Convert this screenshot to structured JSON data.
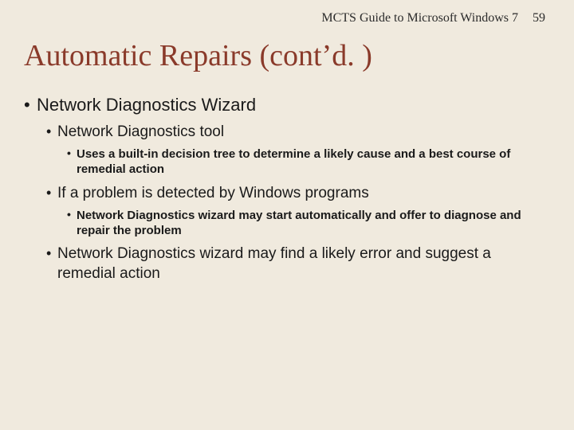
{
  "background_color": "#f0eade",
  "title_color": "#8a3a2a",
  "text_color": "#1a1a1a",
  "header": {
    "book_title": "MCTS Guide to Microsoft Windows 7",
    "page_number": "59"
  },
  "title": "Automatic Repairs (cont’d. )",
  "bullets": {
    "l1_item1": "Network Diagnostics Wizard",
    "l2_item1": "Network Diagnostics tool",
    "l3_item1": "Uses a built-in decision tree to determine a likely cause and a best course of remedial action",
    "l2_item2": "If a problem is detected by Windows programs",
    "l3_item2": "Network Diagnostics wizard may start automatically and offer to diagnose and repair the problem",
    "l2_item3": "Network Diagnostics wizard may find a likely error and suggest a remedial action"
  }
}
